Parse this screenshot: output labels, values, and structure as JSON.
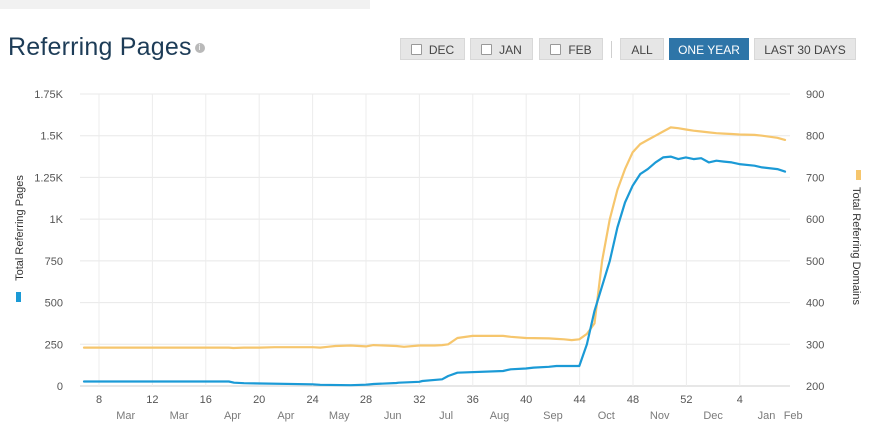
{
  "header": {
    "title": "Referring Pages",
    "info_icon": "info-icon"
  },
  "range_buttons": [
    {
      "label": "DEC",
      "checkbox": true
    },
    {
      "label": "JAN",
      "checkbox": true
    },
    {
      "label": "FEB",
      "checkbox": true
    },
    {
      "label": "ALL",
      "checkbox": false
    },
    {
      "label": "ONE YEAR",
      "checkbox": false,
      "active": true
    },
    {
      "label": "LAST 30 DAYS",
      "checkbox": false
    }
  ],
  "colors": {
    "pages": "#1b9ad6",
    "domains": "#f6c66d",
    "active_button": "#2e75a8",
    "title": "#1d3c57"
  },
  "chart_data": {
    "type": "line",
    "ylabel_left": "Total Referring Pages",
    "ylabel_right": "Total Referring Domains",
    "y_left_ticks": [
      "0",
      "250",
      "500",
      "750",
      "1K",
      "1.25K",
      "1.5K",
      "1.75K"
    ],
    "y_left_range": [
      0,
      1750
    ],
    "y_right_ticks": [
      "200",
      "300",
      "400",
      "500",
      "600",
      "700",
      "800",
      "900"
    ],
    "y_right_range": [
      200,
      900
    ],
    "x_week_ticks": [
      "8",
      "12",
      "16",
      "20",
      "24",
      "28",
      "32",
      "36",
      "40",
      "44",
      "48",
      "52",
      "4"
    ],
    "x_month_labels": [
      "Mar",
      "Mar",
      "Apr",
      "Apr",
      "May",
      "Jun",
      "Jul",
      "Aug",
      "Sep",
      "Oct",
      "Nov",
      "Dec",
      "Jan",
      "Feb"
    ],
    "grid": true,
    "series": [
      {
        "name": "Total Referring Pages",
        "axis": "left",
        "x": [
          5,
          24,
          24.7,
          26,
          35,
          36,
          40,
          42,
          43,
          46,
          46.3,
          49,
          49.4,
          52,
          52.8,
          54,
          60,
          61,
          63,
          64,
          66,
          67,
          70,
          71,
          72,
          74,
          75,
          76,
          77,
          78,
          79,
          80,
          81,
          82,
          83,
          84,
          85,
          86,
          87,
          88,
          89,
          90,
          91,
          93,
          94,
          96,
          97
        ],
        "values": [
          27,
          27,
          20,
          17,
          10,
          7,
          5,
          8,
          12,
          18,
          20,
          25,
          30,
          40,
          60,
          80,
          90,
          100,
          105,
          110,
          115,
          120,
          120,
          250,
          450,
          750,
          950,
          1100,
          1200,
          1270,
          1300,
          1340,
          1370,
          1375,
          1360,
          1370,
          1360,
          1365,
          1340,
          1350,
          1345,
          1340,
          1330,
          1320,
          1310,
          1300,
          1285
        ]
      },
      {
        "name": "Total Referring Domains",
        "axis": "right",
        "x": [
          5,
          24,
          24.6,
          26,
          28,
          30,
          35,
          36,
          37,
          38,
          40,
          42,
          43,
          46,
          47,
          49,
          51,
          52,
          52.8,
          54,
          56,
          58,
          60,
          61,
          63,
          66,
          67,
          68,
          69,
          70,
          71,
          72,
          73,
          74,
          75,
          76,
          77,
          78,
          79,
          80,
          81,
          82,
          83,
          84,
          85,
          86,
          87,
          88,
          89,
          90,
          91,
          93,
          94,
          96,
          97
        ],
        "values": [
          292,
          292,
          291,
          292,
          292,
          293,
          293,
          292,
          294,
          296,
          297,
          295,
          298,
          296,
          294,
          297,
          297,
          298,
          300,
          315,
          320,
          320,
          320,
          318,
          315,
          314,
          313,
          312,
          310,
          312,
          325,
          350,
          500,
          600,
          670,
          720,
          760,
          780,
          790,
          800,
          810,
          820,
          818,
          815,
          812,
          810,
          808,
          806,
          805,
          804,
          803,
          802,
          800,
          795,
          790
        ]
      }
    ]
  }
}
